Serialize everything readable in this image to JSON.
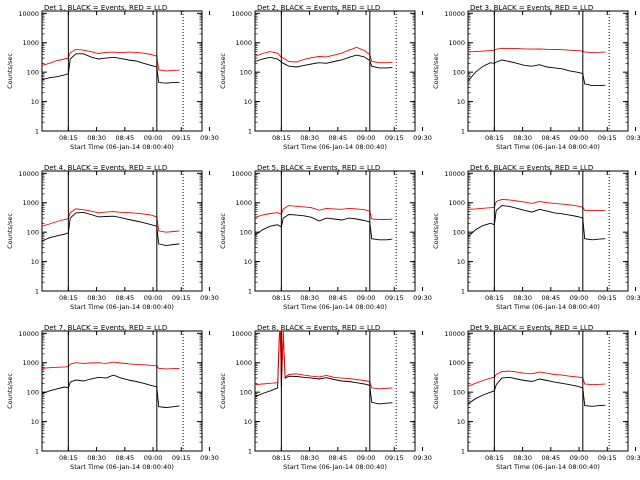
{
  "page": {
    "background": "#ffffff",
    "axis_color": "#000000"
  },
  "series_colors": {
    "events": "#000000",
    "lld": "#ff0000"
  },
  "shared": {
    "ylabel": "Counts/sec",
    "xlabel": "Start Time (06-Jan-14 08:00:40)",
    "yticks": [
      "1",
      "10",
      "100",
      "1000",
      "10000"
    ],
    "xticks": [
      "08:15",
      "08:30",
      "08:45",
      "09:00",
      "09:15",
      "09:30"
    ]
  },
  "chart_data": [
    {
      "type": "line",
      "title": "Det 1, BLACK = Events, RED = LLD",
      "xlim": [
        0,
        85
      ],
      "ylim": [
        1,
        12000
      ],
      "yscale": "log",
      "markers": {
        "solid": [
          14,
          61
        ],
        "dotted": [
          75
        ]
      },
      "series": [
        {
          "key": "events",
          "x": [
            0,
            4,
            8,
            12,
            14,
            15,
            18,
            22,
            26,
            30,
            34,
            38,
            42,
            46,
            50,
            54,
            58,
            61,
            62,
            66,
            70,
            73
          ],
          "values": [
            55,
            65,
            70,
            80,
            90,
            280,
            420,
            420,
            330,
            280,
            300,
            320,
            290,
            260,
            240,
            200,
            170,
            150,
            45,
            42,
            45,
            45
          ]
        },
        {
          "key": "lld",
          "x": [
            0,
            4,
            8,
            12,
            14,
            15,
            18,
            22,
            26,
            30,
            34,
            38,
            42,
            46,
            50,
            54,
            58,
            61,
            62,
            66,
            70,
            73
          ],
          "values": [
            170,
            200,
            250,
            280,
            300,
            450,
            600,
            560,
            500,
            430,
            470,
            480,
            460,
            480,
            470,
            440,
            400,
            350,
            120,
            110,
            115,
            118
          ]
        }
      ]
    },
    {
      "type": "line",
      "title": "Det 2, BLACK = Events, RED = LLD",
      "xlim": [
        0,
        85
      ],
      "ylim": [
        1,
        12000
      ],
      "yscale": "log",
      "markers": {
        "solid": [
          14,
          61
        ],
        "dotted": [
          75
        ]
      },
      "series": [
        {
          "key": "events",
          "x": [
            0,
            4,
            8,
            12,
            14,
            15,
            18,
            22,
            26,
            30,
            34,
            38,
            42,
            46,
            50,
            54,
            58,
            61,
            62,
            66,
            70,
            73
          ],
          "values": [
            230,
            280,
            320,
            280,
            220,
            200,
            160,
            150,
            170,
            190,
            210,
            200,
            230,
            260,
            320,
            380,
            330,
            250,
            160,
            140,
            140,
            145
          ]
        },
        {
          "key": "lld",
          "x": [
            0,
            4,
            8,
            12,
            14,
            15,
            18,
            22,
            26,
            30,
            34,
            38,
            42,
            46,
            50,
            54,
            58,
            61,
            62,
            66,
            70,
            73
          ],
          "values": [
            340,
            430,
            500,
            440,
            320,
            300,
            230,
            220,
            270,
            310,
            340,
            330,
            380,
            440,
            560,
            700,
            550,
            400,
            230,
            210,
            210,
            215
          ]
        }
      ]
    },
    {
      "type": "line",
      "title": "Det 3, BLACK = Events, RED = LLD",
      "xlim": [
        0,
        85
      ],
      "ylim": [
        1,
        12000
      ],
      "yscale": "log",
      "markers": {
        "solid": [
          14,
          61
        ],
        "dotted": [
          75
        ]
      },
      "series": [
        {
          "key": "events",
          "x": [
            0,
            4,
            8,
            12,
            14,
            15,
            18,
            22,
            26,
            30,
            34,
            38,
            42,
            46,
            50,
            54,
            58,
            61,
            62,
            66,
            70,
            73
          ],
          "values": [
            50,
            100,
            160,
            210,
            200,
            220,
            260,
            230,
            200,
            170,
            160,
            180,
            150,
            140,
            130,
            110,
            100,
            90,
            40,
            35,
            35,
            36
          ]
        },
        {
          "key": "lld",
          "x": [
            0,
            4,
            8,
            12,
            14,
            15,
            18,
            22,
            26,
            30,
            34,
            38,
            42,
            46,
            50,
            54,
            58,
            61,
            62,
            66,
            70,
            73
          ],
          "values": [
            480,
            500,
            520,
            540,
            560,
            600,
            650,
            640,
            630,
            620,
            610,
            620,
            600,
            590,
            580,
            560,
            540,
            520,
            480,
            470,
            475,
            480
          ]
        }
      ]
    },
    {
      "type": "line",
      "title": "Det 4, BLACK = Events, RED = LLD",
      "xlim": [
        0,
        85
      ],
      "ylim": [
        1,
        12000
      ],
      "yscale": "log",
      "markers": {
        "solid": [
          14,
          61
        ],
        "dotted": [
          75
        ]
      },
      "series": [
        {
          "key": "events",
          "x": [
            0,
            4,
            8,
            12,
            14,
            15,
            18,
            22,
            26,
            30,
            34,
            38,
            42,
            46,
            50,
            54,
            58,
            61,
            62,
            66,
            70,
            73
          ],
          "values": [
            50,
            65,
            75,
            85,
            95,
            300,
            450,
            470,
            400,
            330,
            340,
            350,
            310,
            270,
            240,
            210,
            180,
            160,
            40,
            35,
            38,
            40
          ]
        },
        {
          "key": "lld",
          "x": [
            0,
            4,
            8,
            12,
            14,
            15,
            18,
            22,
            26,
            30,
            34,
            38,
            42,
            46,
            50,
            54,
            58,
            61,
            62,
            66,
            70,
            73
          ],
          "values": [
            160,
            190,
            230,
            270,
            290,
            460,
            620,
            580,
            520,
            450,
            480,
            500,
            470,
            460,
            440,
            410,
            380,
            330,
            110,
            100,
            105,
            110
          ]
        }
      ]
    },
    {
      "type": "line",
      "title": "Det 5, BLACK = Events, RED = LLD",
      "xlim": [
        0,
        85
      ],
      "ylim": [
        1,
        12000
      ],
      "yscale": "log",
      "markers": {
        "solid": [
          14,
          61
        ],
        "dotted": [
          75
        ]
      },
      "series": [
        {
          "key": "events",
          "x": [
            0,
            4,
            8,
            12,
            14,
            15,
            18,
            22,
            26,
            30,
            34,
            38,
            42,
            46,
            50,
            54,
            58,
            61,
            62,
            66,
            70,
            73
          ],
          "values": [
            80,
            120,
            160,
            180,
            150,
            300,
            400,
            380,
            360,
            320,
            240,
            300,
            280,
            260,
            300,
            280,
            250,
            220,
            60,
            55,
            55,
            58
          ]
        },
        {
          "key": "lld",
          "x": [
            0,
            4,
            8,
            12,
            14,
            15,
            18,
            22,
            26,
            30,
            34,
            38,
            42,
            46,
            50,
            54,
            58,
            61,
            62,
            66,
            70,
            73
          ],
          "values": [
            320,
            380,
            430,
            460,
            400,
            620,
            800,
            760,
            720,
            680,
            560,
            640,
            620,
            600,
            640,
            620,
            580,
            520,
            280,
            270,
            270,
            275
          ]
        }
      ]
    },
    {
      "type": "line",
      "title": "Det 6, BLACK = Events, RED = LLD",
      "xlim": [
        0,
        85
      ],
      "ylim": [
        1,
        12000
      ],
      "yscale": "log",
      "markers": {
        "solid": [
          14,
          61
        ],
        "dotted": [
          75
        ]
      },
      "series": [
        {
          "key": "events",
          "x": [
            0,
            4,
            8,
            12,
            14,
            15,
            18,
            22,
            26,
            30,
            34,
            38,
            42,
            46,
            50,
            54,
            58,
            61,
            62,
            66,
            70,
            73
          ],
          "values": [
            70,
            120,
            170,
            200,
            180,
            550,
            800,
            750,
            650,
            550,
            480,
            600,
            520,
            450,
            420,
            380,
            340,
            300,
            60,
            55,
            58,
            60
          ]
        },
        {
          "key": "lld",
          "x": [
            0,
            4,
            8,
            12,
            14,
            15,
            18,
            22,
            26,
            30,
            34,
            38,
            42,
            46,
            50,
            54,
            58,
            61,
            62,
            66,
            70,
            73
          ],
          "values": [
            600,
            620,
            650,
            680,
            700,
            1100,
            1300,
            1250,
            1150,
            1050,
            950,
            1100,
            1000,
            950,
            900,
            850,
            780,
            700,
            550,
            550,
            550,
            550
          ]
        }
      ]
    },
    {
      "type": "line",
      "title": "Det 7, BLACK = Events, RED = LLD",
      "xlim": [
        0,
        85
      ],
      "ylim": [
        1,
        12000
      ],
      "yscale": "log",
      "markers": {
        "solid": [
          14,
          61
        ],
        "dotted": [
          75
        ]
      },
      "series": [
        {
          "key": "events",
          "x": [
            0,
            4,
            8,
            12,
            14,
            15,
            18,
            22,
            26,
            30,
            34,
            38,
            42,
            46,
            50,
            54,
            58,
            61,
            62,
            66,
            70,
            73
          ],
          "values": [
            90,
            110,
            130,
            150,
            140,
            220,
            260,
            240,
            280,
            320,
            300,
            380,
            300,
            260,
            230,
            200,
            170,
            150,
            32,
            30,
            32,
            34
          ]
        },
        {
          "key": "lld",
          "x": [
            0,
            4,
            8,
            12,
            14,
            15,
            18,
            22,
            26,
            30,
            34,
            38,
            42,
            46,
            50,
            54,
            58,
            61,
            62,
            66,
            70,
            73
          ],
          "values": [
            650,
            680,
            700,
            720,
            740,
            900,
            1000,
            950,
            980,
            1000,
            950,
            1050,
            980,
            920,
            880,
            850,
            820,
            780,
            650,
            620,
            630,
            640
          ]
        }
      ]
    },
    {
      "type": "line",
      "title": "Det 8, BLACK = Events, RED = LLD",
      "xlim": [
        0,
        85
      ],
      "ylim": [
        1,
        12000
      ],
      "yscale": "log",
      "markers": {
        "solid": [
          14,
          61
        ],
        "dotted": [
          75
        ]
      },
      "series": [
        {
          "key": "events",
          "x": [
            0,
            4,
            8,
            12,
            13,
            13.5,
            14,
            15,
            16,
            18,
            22,
            26,
            30,
            34,
            38,
            42,
            46,
            50,
            54,
            58,
            61,
            62,
            66,
            70,
            73
          ],
          "values": [
            70,
            90,
            110,
            140,
            10000,
            10000,
            150,
            10000,
            300,
            350,
            340,
            320,
            300,
            280,
            310,
            270,
            240,
            230,
            210,
            190,
            170,
            45,
            40,
            42,
            44
          ]
        },
        {
          "key": "lld",
          "x": [
            0,
            4,
            8,
            12,
            13,
            13.5,
            14,
            15,
            16,
            18,
            22,
            26,
            30,
            34,
            38,
            42,
            46,
            50,
            54,
            58,
            61,
            62,
            66,
            70,
            73
          ],
          "values": [
            180,
            190,
            200,
            210,
            12000,
            12000,
            220,
            12000,
            330,
            400,
            420,
            380,
            350,
            330,
            370,
            320,
            300,
            290,
            270,
            250,
            230,
            140,
            130,
            135,
            138
          ]
        }
      ]
    },
    {
      "type": "line",
      "title": "Det 9, BLACK = Events, RED = LLD",
      "xlim": [
        0,
        85
      ],
      "ylim": [
        1,
        12000
      ],
      "yscale": "log",
      "markers": {
        "solid": [
          14,
          61
        ],
        "dotted": [
          75
        ]
      },
      "series": [
        {
          "key": "events",
          "x": [
            0,
            4,
            8,
            12,
            14,
            15,
            18,
            22,
            26,
            30,
            34,
            38,
            42,
            46,
            50,
            54,
            58,
            61,
            62,
            66,
            70,
            73
          ],
          "values": [
            40,
            60,
            80,
            100,
            110,
            180,
            300,
            320,
            280,
            250,
            230,
            280,
            250,
            220,
            200,
            180,
            160,
            140,
            35,
            33,
            35,
            36
          ]
        },
        {
          "key": "lld",
          "x": [
            0,
            4,
            8,
            12,
            14,
            15,
            18,
            22,
            26,
            30,
            34,
            38,
            42,
            46,
            50,
            54,
            58,
            61,
            62,
            66,
            70,
            73
          ],
          "values": [
            160,
            200,
            250,
            300,
            320,
            400,
            500,
            520,
            480,
            440,
            420,
            480,
            440,
            400,
            380,
            350,
            330,
            310,
            190,
            180,
            185,
            188
          ]
        }
      ]
    }
  ]
}
